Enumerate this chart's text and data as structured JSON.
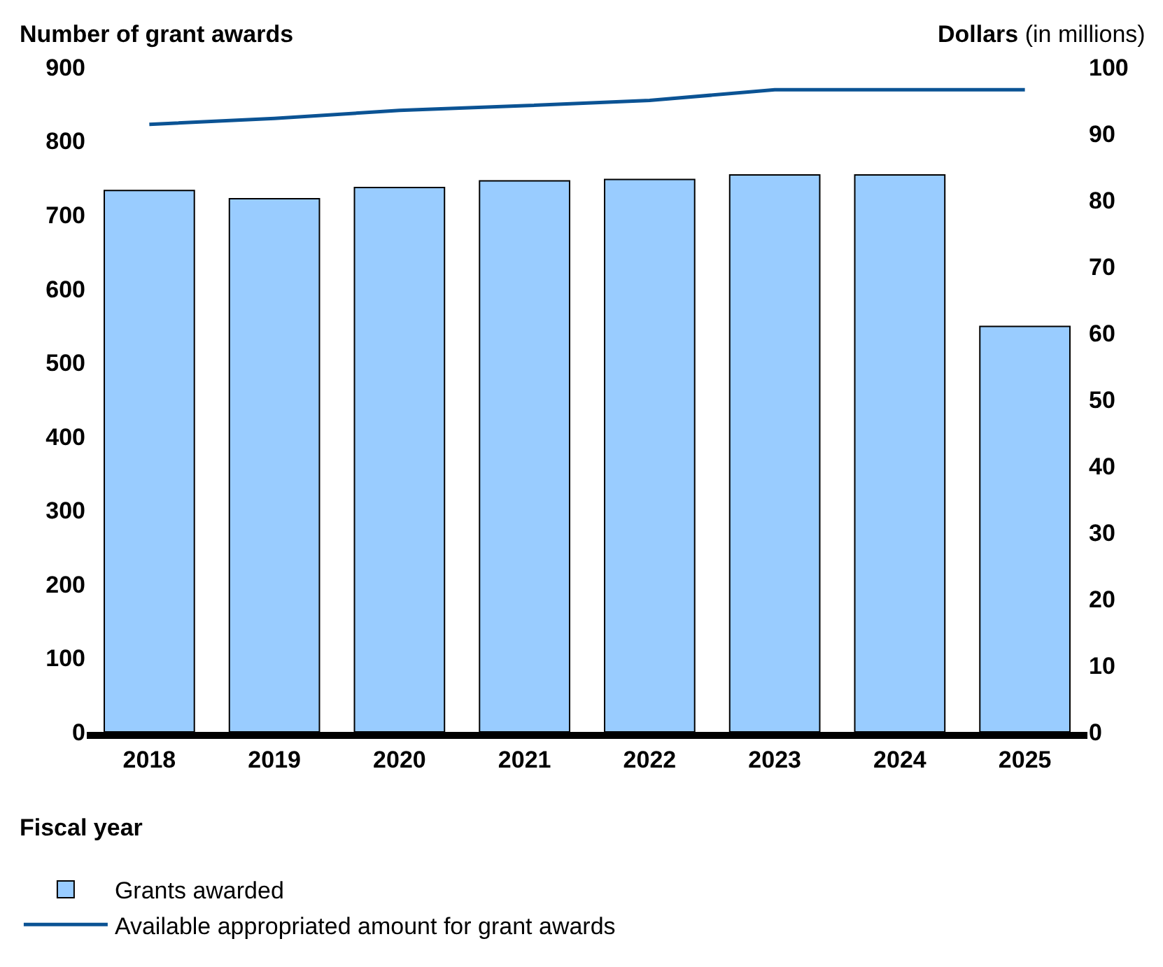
{
  "chart_data": {
    "type": "bar",
    "categories": [
      "2018",
      "2019",
      "2020",
      "2021",
      "2022",
      "2023",
      "2024",
      "2025"
    ],
    "xlabel": "Fiscal year",
    "ylabel": "Number of grant awards",
    "y2label": "Dollars (in millions)",
    "series": [
      {
        "name": "Grants awarded",
        "color": "#99ccff",
        "values": [
          733,
          722,
          737,
          746,
          748,
          754,
          754,
          549
        ]
      },
      {
        "name": "Available appropriated amount for grant awards",
        "type": "line",
        "axis": "y2",
        "color": "#0b5394",
        "values": [
          91.4,
          92.3,
          93.5,
          94.2,
          95.0,
          96.6,
          96.6,
          96.6
        ]
      }
    ],
    "ylim": [
      0,
      900
    ],
    "yticks": [
      0,
      100,
      200,
      300,
      400,
      500,
      600,
      700,
      800,
      900
    ],
    "y2lim": [
      0,
      100
    ],
    "y2ticks": [
      0,
      10,
      20,
      30,
      40,
      50,
      60,
      70,
      80,
      90,
      100
    ],
    "grid": false,
    "legend": "bottom left"
  }
}
